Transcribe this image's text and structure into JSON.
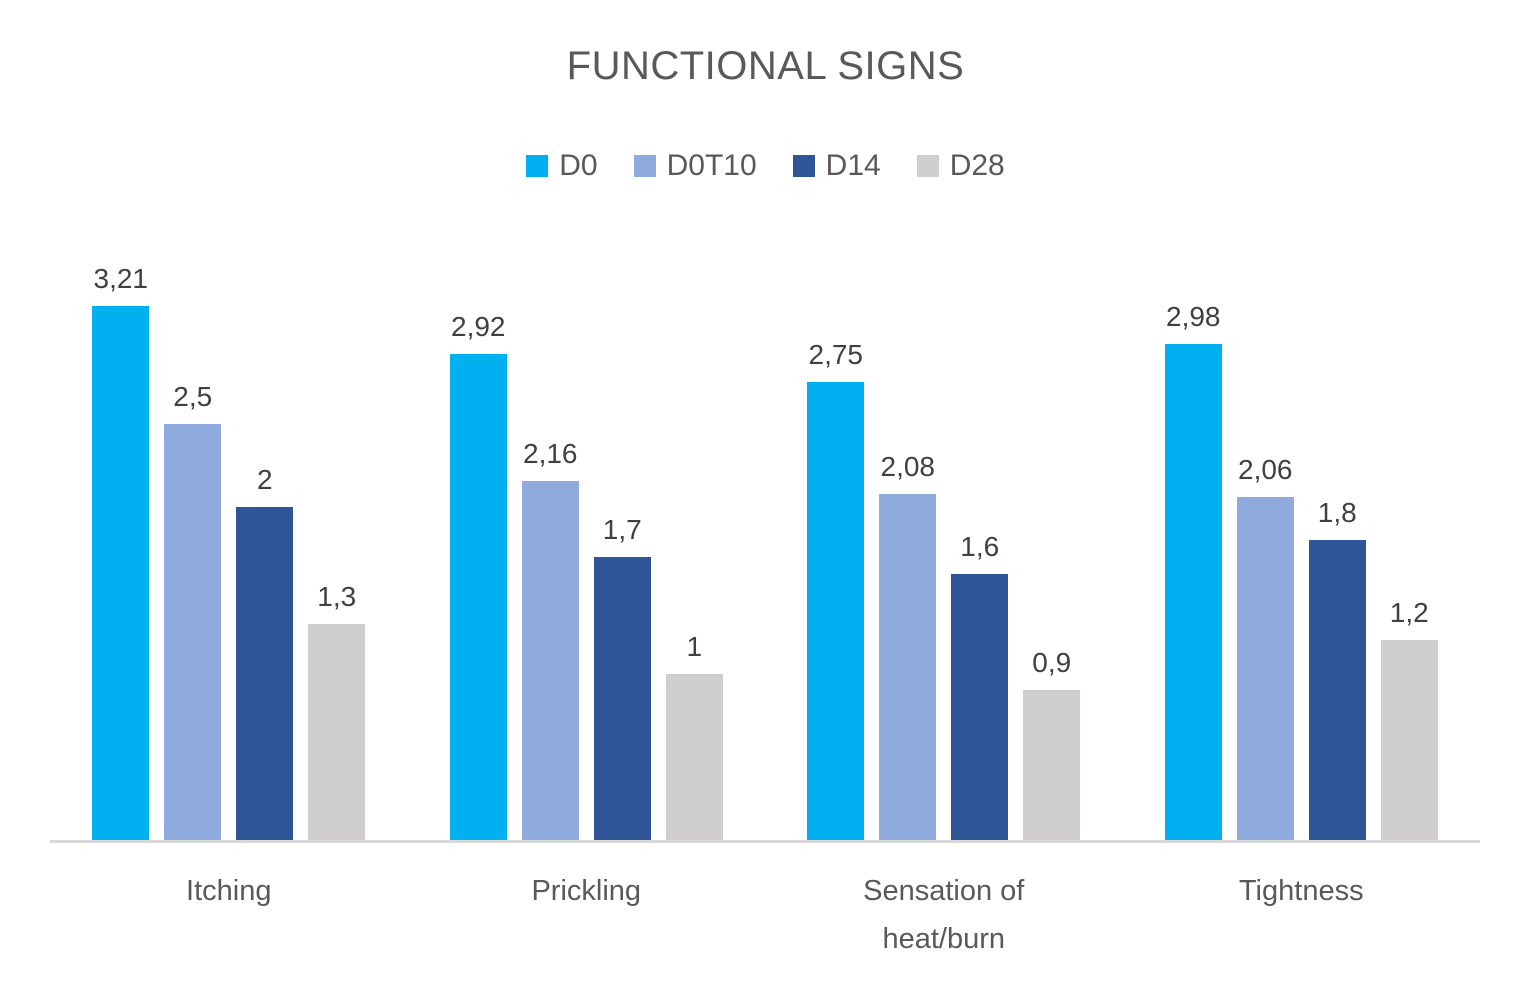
{
  "chart_data": {
    "type": "bar",
    "title": "FUNCTIONAL SIGNS",
    "categories": [
      "Itching",
      "Prickling",
      "Sensation of heat/burn",
      "Tightness"
    ],
    "series": [
      {
        "name": "D0",
        "color": "#00B0F0",
        "values": [
          3.21,
          2.92,
          2.75,
          2.98
        ],
        "labels": [
          "3,21",
          "2,92",
          "2,75",
          "2,98"
        ]
      },
      {
        "name": "D0T10",
        "color": "#8FAADC",
        "values": [
          2.5,
          2.16,
          2.08,
          2.06
        ],
        "labels": [
          "2,5",
          "2,16",
          "2,08",
          "2,06"
        ]
      },
      {
        "name": "D14",
        "color": "#2F5597",
        "values": [
          2,
          1.7,
          1.6,
          1.8
        ],
        "labels": [
          "2",
          "1,7",
          "1,6",
          "1,8"
        ]
      },
      {
        "name": "D28",
        "color": "#D0CECE",
        "values": [
          1.3,
          1,
          0.9,
          1.2
        ],
        "labels": [
          "1,3",
          "1",
          "0,9",
          "1,2"
        ]
      }
    ],
    "ylim": [
      0,
      3.5
    ],
    "xlabel": "",
    "ylabel": "",
    "grid": false,
    "y_axis_visible": false,
    "legend_position": "top",
    "decimal_separator": ",",
    "data_labels_visible": true,
    "colors": {
      "title_text": "#595959",
      "legend_text": "#595959",
      "category_text": "#595959",
      "data_label_text": "#404040",
      "axis_line": "#D9D9D9",
      "background": "#FFFFFF"
    }
  }
}
